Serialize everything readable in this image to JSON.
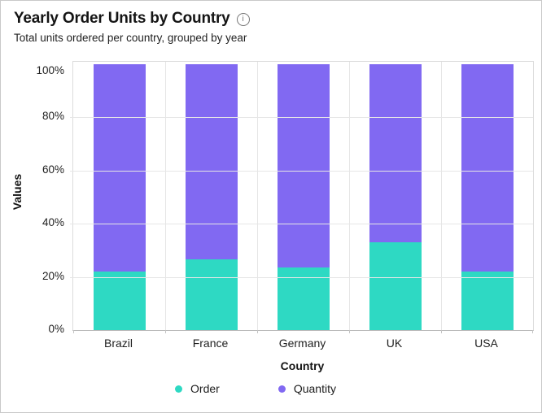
{
  "header": {
    "info_icon_glyph": "i"
  },
  "chart_data": {
    "type": "bar",
    "variant": "stacked-percent",
    "title": "Yearly Order Units by Country",
    "subtitle": "Total units ordered per country, grouped by year",
    "categories": [
      "Brazil",
      "France",
      "Germany",
      "UK",
      "USA"
    ],
    "series": [
      {
        "name": "Order",
        "color": "#2ed9c3",
        "values": [
          22,
          26.5,
          23.5,
          33,
          22
        ]
      },
      {
        "name": "Quantity",
        "color": "#8169f2",
        "values": [
          78,
          73.5,
          76.5,
          67,
          78
        ]
      }
    ],
    "xlabel": "Country",
    "ylabel": "Values",
    "ylim": [
      0,
      100
    ],
    "yticks": [
      0,
      20,
      40,
      60,
      80,
      100
    ],
    "ytick_labels": [
      "0%",
      "20%",
      "40%",
      "60%",
      "80%",
      "100%"
    ],
    "grid": true,
    "legend_position": "bottom"
  }
}
